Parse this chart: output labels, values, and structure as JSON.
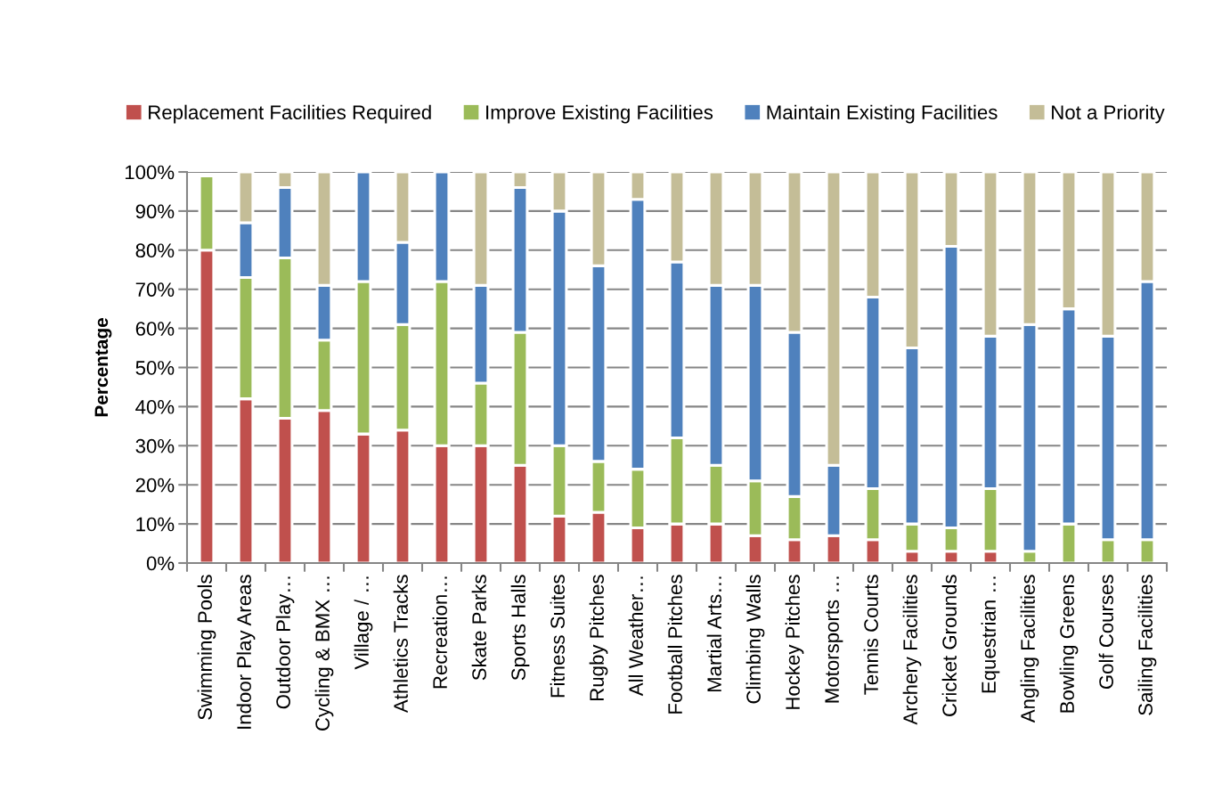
{
  "chart_data": {
    "type": "bar",
    "stacked": true,
    "ylabel": "Percentage",
    "categories": [
      "Swimming Pools",
      "Indoor Play Areas",
      "Outdoor Play…",
      "Cycling & BMX …",
      "Village / …",
      "Athletics Tracks",
      "Recreation…",
      "Skate Parks",
      "Sports Halls",
      "Fitness Suites",
      "Rugby Pitches",
      "All Weather…",
      "Football Pitches",
      "Martial Arts…",
      "Climbing Walls",
      "Hockey Pitches",
      "Motorsports …",
      "Tennis Courts",
      "Archery Facilities",
      "Cricket Grounds",
      "Equestrian …",
      "Angling Facilities",
      "Bowling Greens",
      "Golf Courses",
      "Sailing Facilities"
    ],
    "series": [
      {
        "name": "Replacement Facilities Required",
        "color": "#c0504d",
        "values": [
          80,
          42,
          37,
          39,
          33,
          34,
          30,
          30,
          25,
          12,
          13,
          9,
          10,
          10,
          7,
          6,
          7,
          6,
          3,
          3,
          3,
          0,
          0,
          0,
          0
        ]
      },
      {
        "name": "Improve Existing Facilities",
        "color": "#9bbb59",
        "values": [
          19,
          31,
          41,
          18,
          39,
          27,
          42,
          16,
          34,
          18,
          13,
          15,
          22,
          15,
          14,
          11,
          0,
          13,
          7,
          6,
          16,
          3,
          10,
          6,
          6
        ]
      },
      {
        "name": "Maintain Existing Facilities",
        "color": "#4f81bd",
        "values": [
          0,
          14,
          18,
          14,
          28,
          21,
          28,
          25,
          37,
          60,
          50,
          69,
          45,
          46,
          50,
          42,
          18,
          49,
          45,
          72,
          39,
          58,
          55,
          52,
          66
        ]
      },
      {
        "name": "Not a Priority",
        "color": "#c4bd97",
        "values": [
          0,
          13,
          4,
          29,
          0,
          18,
          0,
          29,
          4,
          10,
          24,
          7,
          23,
          29,
          29,
          41,
          75,
          32,
          45,
          19,
          42,
          39,
          35,
          42,
          28
        ]
      }
    ],
    "ylim": [
      0,
      100
    ],
    "yticks": [
      {
        "value": 0,
        "label": "0%"
      },
      {
        "value": 10,
        "label": "10%"
      },
      {
        "value": 20,
        "label": "20%"
      },
      {
        "value": 30,
        "label": "30%"
      },
      {
        "value": 40,
        "label": "40%"
      },
      {
        "value": 50,
        "label": "50%"
      },
      {
        "value": 60,
        "label": "60%"
      },
      {
        "value": 70,
        "label": "70%"
      },
      {
        "value": 80,
        "label": "80%"
      },
      {
        "value": 90,
        "label": "90%"
      },
      {
        "value": 100,
        "label": "100%"
      }
    ],
    "grid": "y",
    "legend": "top"
  }
}
